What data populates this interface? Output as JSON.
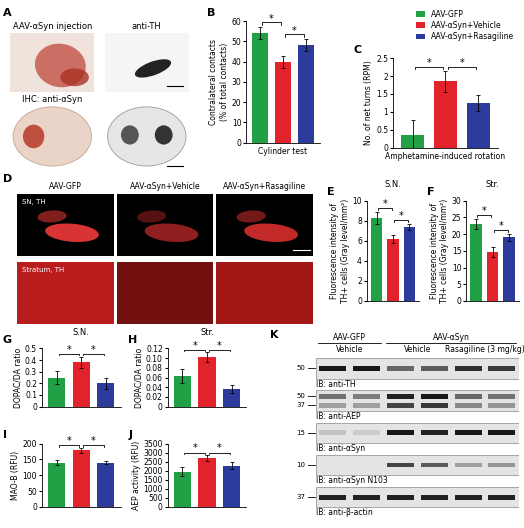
{
  "chart_data": [
    {
      "type": "bar",
      "panel": "B",
      "categories": [
        "AAV-GFP",
        "AAV-αSyn+Vehicle",
        "AAV-αSyn+Rasagiline"
      ],
      "colors": [
        "#22a046",
        "#e3232b",
        "#2c3b9c"
      ],
      "values": [
        54,
        40,
        48
      ],
      "errors": [
        3,
        3,
        3
      ],
      "ylim": [
        0,
        60
      ],
      "yticks": [
        0,
        10,
        20,
        30,
        40,
        50,
        60
      ],
      "ylabel": "Contralateral contacts\n(% of total contacts)",
      "xlabel": "Cylinder test",
      "tick_labels": "y",
      "significance": [
        {
          "pair": [
            0,
            1
          ],
          "label": "*"
        },
        {
          "pair": [
            1,
            2
          ],
          "label": "*"
        }
      ]
    },
    {
      "type": "bar",
      "panel": "C",
      "categories": [
        "AAV-GFP",
        "AAV-αSyn+Vehicle",
        "AAV-αSyn+Rasagiline"
      ],
      "colors": [
        "#22a046",
        "#e3232b",
        "#2c3b9c"
      ],
      "values": [
        0.35,
        1.85,
        1.25
      ],
      "errors": [
        0.42,
        0.3,
        0.22
      ],
      "ylim": [
        0,
        2.5
      ],
      "yticks": [
        0,
        0.5,
        1,
        1.5,
        2,
        2.5
      ],
      "ylabel": "No. of net turns (RPM)",
      "xlabel": "Amphetamine-induced rotation",
      "tick_labels": "y",
      "legend": "upper right",
      "significance": [
        {
          "pair": [
            0,
            1
          ],
          "label": "*"
        },
        {
          "pair": [
            1,
            2
          ],
          "label": "*"
        }
      ]
    },
    {
      "type": "bar",
      "panel": "E",
      "title": "S.N.",
      "categories": [
        "AAV-GFP",
        "AAV-αSyn+Vehicle",
        "AAV-αSyn+Rasagiline"
      ],
      "colors": [
        "#22a046",
        "#e3232b",
        "#2c3b9c"
      ],
      "values": [
        8.3,
        6.2,
        7.4
      ],
      "errors": [
        0.6,
        0.4,
        0.3
      ],
      "ylim": [
        0,
        10
      ],
      "yticks": [
        0,
        2,
        4,
        6,
        8,
        10
      ],
      "ylabel": "Fluorescence intensity of\nTH+ cells (Gray level/mm²)",
      "tick_labels": "y",
      "significance": [
        {
          "pair": [
            0,
            1
          ],
          "label": "*"
        },
        {
          "pair": [
            1,
            2
          ],
          "label": "*"
        }
      ]
    },
    {
      "type": "bar",
      "panel": "F",
      "title": "Str.",
      "categories": [
        "AAV-GFP",
        "AAV-αSyn+Vehicle",
        "AAV-αSyn+Rasagiline"
      ],
      "colors": [
        "#22a046",
        "#e3232b",
        "#2c3b9c"
      ],
      "values": [
        23,
        14.5,
        19
      ],
      "errors": [
        1.5,
        1.5,
        1
      ],
      "ylim": [
        0,
        30
      ],
      "yticks": [
        0,
        5,
        10,
        15,
        20,
        25,
        30
      ],
      "ylabel": "Fluorescence intensity of\nTH+ cells (Gray level/mm²)",
      "tick_labels": "y",
      "significance": [
        {
          "pair": [
            0,
            1
          ],
          "label": "*"
        },
        {
          "pair": [
            1,
            2
          ],
          "label": "*"
        }
      ]
    },
    {
      "type": "bar",
      "panel": "G",
      "title": "S.N.",
      "categories": [
        "AAV-GFP",
        "AAV-αSyn+Vehicle",
        "AAV-αSyn+Rasagiline"
      ],
      "colors": [
        "#22a046",
        "#e3232b",
        "#2c3b9c"
      ],
      "values": [
        0.25,
        0.38,
        0.2
      ],
      "errors": [
        0.06,
        0.05,
        0.05
      ],
      "ylim": [
        0,
        0.5
      ],
      "yticks": [
        0,
        0.1,
        0.2,
        0.3,
        0.4,
        0.5
      ],
      "ylabel": "DOPAC/DA ratio",
      "tick_labels": "y",
      "significance": [
        {
          "pair": [
            0,
            1
          ],
          "label": "*"
        },
        {
          "pair": [
            1,
            2
          ],
          "label": "*"
        }
      ]
    },
    {
      "type": "bar",
      "panel": "H",
      "title": "Str.",
      "categories": [
        "AAV-GFP",
        "AAV-αSyn+Vehicle",
        "AAV-αSyn+Rasagiline"
      ],
      "colors": [
        "#22a046",
        "#e3232b",
        "#2c3b9c"
      ],
      "values": [
        0.063,
        0.102,
        0.036
      ],
      "errors": [
        0.015,
        0.01,
        0.008
      ],
      "ylim": [
        0,
        0.12
      ],
      "yticks": [
        0,
        0.02,
        0.04,
        0.06,
        0.08,
        {
          "value": 0.1,
          "label": "0.10"
        },
        0.12
      ],
      "ylabel": "DOPAC/DA ratio",
      "tick_labels": "y",
      "significance": [
        {
          "pair": [
            0,
            1
          ],
          "label": "*"
        },
        {
          "pair": [
            1,
            2
          ],
          "label": "*"
        }
      ]
    },
    {
      "type": "bar",
      "panel": "I",
      "categories": [
        "AAV-GFP",
        "AAV-αSyn+Vehicle",
        "AAV-αSyn+Rasagiline"
      ],
      "colors": [
        "#22a046",
        "#e3232b",
        "#2c3b9c"
      ],
      "values": [
        140,
        178,
        140
      ],
      "errors": [
        8,
        8,
        6
      ],
      "ylim": [
        0,
        200
      ],
      "yticks": [
        0,
        50,
        100,
        150,
        200
      ],
      "ylabel": "MAO-B (RFU)",
      "tick_labels": "y",
      "significance": [
        {
          "pair": [
            0,
            1
          ],
          "label": "*"
        },
        {
          "pair": [
            1,
            2
          ],
          "label": "*"
        }
      ]
    },
    {
      "type": "bar",
      "panel": "J",
      "categories": [
        "AAV-GFP",
        "AAV-αSyn+Vehicle",
        "AAV-αSyn+Rasagiline"
      ],
      "colors": [
        "#22a046",
        "#e3232b",
        "#2c3b9c"
      ],
      "values": [
        1950,
        2700,
        2280
      ],
      "errors": [
        250,
        150,
        200
      ],
      "ylim": [
        0,
        3500
      ],
      "yticks": [
        0,
        500,
        1000,
        1500,
        2000,
        2500,
        3000,
        3500
      ],
      "ylabel": "AEP activity (RFU)",
      "tick_labels": "y",
      "significance": [
        {
          "pair": [
            0,
            1
          ],
          "label": "*"
        },
        {
          "pair": [
            1,
            2
          ],
          "label": "*"
        }
      ]
    }
  ],
  "panels": [
    {
      "panel": "A",
      "title": "AAV-αSyn injection",
      "labels": [
        "IHC: anti-αSyn",
        "anti-TH"
      ]
    },
    {
      "panel": "D",
      "columns": [
        "AAV-GFP",
        "AAV-αSyn+Vehicle",
        "AAV-αSyn+Rasagiline"
      ],
      "rows": [
        "SN, TH",
        "Stratum, TH"
      ]
    },
    {
      "panel": "K",
      "groups": [
        {
          "label": "AAV-GFP",
          "treatments": [
            "Vehicle"
          ]
        },
        {
          "label": "AAV-αSyn",
          "treatments": [
            "Vehicle",
            "Rasagiline (3 mg/kg)"
          ]
        }
      ],
      "blots": [
        {
          "label": "IB: anti-TH",
          "markers": [
            50
          ]
        },
        {
          "label": "IB: anti-AEP",
          "markers": [
            50,
            37
          ]
        },
        {
          "label": "IB: anti-αSyn",
          "markers": [
            15
          ]
        },
        {
          "label": "IB: anti-αSyn N103",
          "markers": [
            10
          ]
        },
        {
          "label": "IB: anti-β-actin",
          "markers": [
            37
          ]
        }
      ]
    }
  ]
}
